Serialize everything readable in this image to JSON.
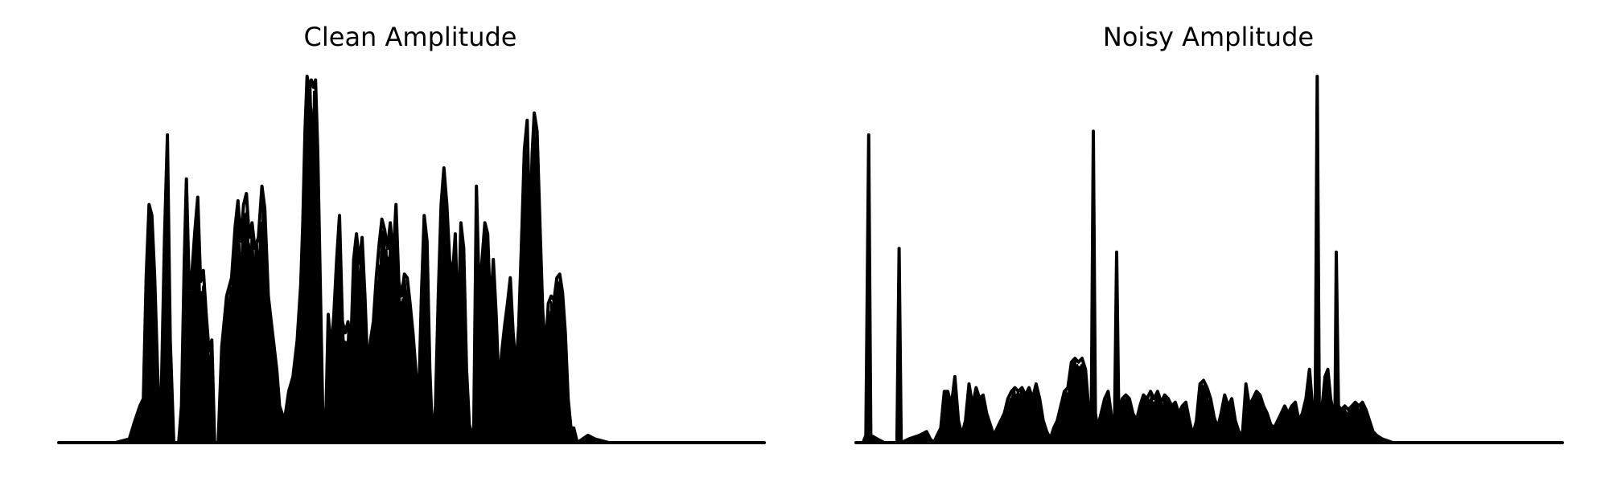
{
  "colors": {
    "background": "#ffffff",
    "waveform": "#000000"
  },
  "chart_data": [
    {
      "type": "area",
      "title": "Clean Amplitude",
      "xlabel": "",
      "ylabel": "",
      "axes_visible": false,
      "grid": false,
      "xlim": [
        0,
        1
      ],
      "ylim": [
        0,
        1
      ],
      "peaks": [
        [
          0.0,
          0.0
        ],
        [
          0.08,
          0.0
        ],
        [
          0.1,
          0.01
        ],
        [
          0.108,
          0.06
        ],
        [
          0.115,
          0.1
        ],
        [
          0.12,
          0.12
        ],
        [
          0.124,
          0.45
        ],
        [
          0.128,
          0.65
        ],
        [
          0.132,
          0.62
        ],
        [
          0.136,
          0.45
        ],
        [
          0.14,
          0.2
        ],
        [
          0.144,
          0.0
        ],
        [
          0.15,
          0.56
        ],
        [
          0.154,
          0.84
        ],
        [
          0.158,
          0.28
        ],
        [
          0.163,
          0.0
        ],
        [
          0.17,
          0.0
        ],
        [
          0.174,
          0.1
        ],
        [
          0.178,
          0.5
        ],
        [
          0.181,
          0.72
        ],
        [
          0.185,
          0.42
        ],
        [
          0.189,
          0.47
        ],
        [
          0.193,
          0.58
        ],
        [
          0.197,
          0.67
        ],
        [
          0.201,
          0.44
        ],
        [
          0.205,
          0.47
        ],
        [
          0.209,
          0.35
        ],
        [
          0.213,
          0.25
        ],
        [
          0.217,
          0.28
        ],
        [
          0.221,
          0.0
        ],
        [
          0.226,
          0.0
        ],
        [
          0.231,
          0.26
        ],
        [
          0.238,
          0.4
        ],
        [
          0.245,
          0.45
        ],
        [
          0.25,
          0.59
        ],
        [
          0.254,
          0.66
        ],
        [
          0.258,
          0.55
        ],
        [
          0.262,
          0.65
        ],
        [
          0.266,
          0.68
        ],
        [
          0.27,
          0.56
        ],
        [
          0.274,
          0.6
        ],
        [
          0.278,
          0.53
        ],
        [
          0.283,
          0.56
        ],
        [
          0.288,
          0.7
        ],
        [
          0.292,
          0.64
        ],
        [
          0.297,
          0.4
        ],
        [
          0.303,
          0.3
        ],
        [
          0.309,
          0.2
        ],
        [
          0.313,
          0.1
        ],
        [
          0.32,
          0.06
        ],
        [
          0.326,
          0.14
        ],
        [
          0.332,
          0.18
        ],
        [
          0.338,
          0.28
        ],
        [
          0.343,
          0.43
        ],
        [
          0.346,
          0.6
        ],
        [
          0.349,
          0.85
        ],
        [
          0.352,
          1.0
        ],
        [
          0.355,
          0.97
        ],
        [
          0.358,
          0.99
        ],
        [
          0.361,
          0.97
        ],
        [
          0.364,
          0.99
        ],
        [
          0.367,
          0.8
        ],
        [
          0.371,
          0.4
        ],
        [
          0.375,
          0.0
        ],
        [
          0.379,
          0.1
        ],
        [
          0.382,
          0.35
        ],
        [
          0.386,
          0.25
        ],
        [
          0.39,
          0.35
        ],
        [
          0.394,
          0.5
        ],
        [
          0.398,
          0.62
        ],
        [
          0.402,
          0.33
        ],
        [
          0.406,
          0.3
        ],
        [
          0.41,
          0.33
        ],
        [
          0.414,
          0.26
        ],
        [
          0.418,
          0.5
        ],
        [
          0.422,
          0.57
        ],
        [
          0.426,
          0.49
        ],
        [
          0.43,
          0.56
        ],
        [
          0.434,
          0.4
        ],
        [
          0.438,
          0.2
        ],
        [
          0.442,
          0.28
        ],
        [
          0.446,
          0.33
        ],
        [
          0.45,
          0.45
        ],
        [
          0.454,
          0.54
        ],
        [
          0.458,
          0.61
        ],
        [
          0.462,
          0.58
        ],
        [
          0.466,
          0.53
        ],
        [
          0.47,
          0.6
        ],
        [
          0.474,
          0.5
        ],
        [
          0.478,
          0.65
        ],
        [
          0.482,
          0.44
        ],
        [
          0.486,
          0.4
        ],
        [
          0.49,
          0.46
        ],
        [
          0.494,
          0.45
        ],
        [
          0.498,
          0.38
        ],
        [
          0.502,
          0.3
        ],
        [
          0.506,
          0.2
        ],
        [
          0.51,
          0.1
        ],
        [
          0.514,
          0.4
        ],
        [
          0.518,
          0.62
        ],
        [
          0.522,
          0.55
        ],
        [
          0.526,
          0.2
        ],
        [
          0.53,
          0.0
        ],
        [
          0.534,
          0.1
        ],
        [
          0.538,
          0.4
        ],
        [
          0.542,
          0.65
        ],
        [
          0.546,
          0.75
        ],
        [
          0.55,
          0.65
        ],
        [
          0.554,
          0.5
        ],
        [
          0.558,
          0.45
        ],
        [
          0.562,
          0.57
        ],
        [
          0.566,
          0.3
        ],
        [
          0.57,
          0.6
        ],
        [
          0.574,
          0.53
        ],
        [
          0.578,
          0.2
        ],
        [
          0.582,
          0.05
        ],
        [
          0.588,
          0.0
        ],
        [
          0.592,
          0.7
        ],
        [
          0.596,
          0.4
        ],
        [
          0.6,
          0.5
        ],
        [
          0.604,
          0.6
        ],
        [
          0.608,
          0.57
        ],
        [
          0.612,
          0.35
        ],
        [
          0.616,
          0.5
        ],
        [
          0.62,
          0.35
        ],
        [
          0.624,
          0.15
        ],
        [
          0.628,
          0.25
        ],
        [
          0.632,
          0.32
        ],
        [
          0.636,
          0.38
        ],
        [
          0.64,
          0.45
        ],
        [
          0.644,
          0.3
        ],
        [
          0.648,
          0.2
        ],
        [
          0.652,
          0.32
        ],
        [
          0.656,
          0.55
        ],
        [
          0.66,
          0.8
        ],
        [
          0.664,
          0.88
        ],
        [
          0.668,
          0.55
        ],
        [
          0.671,
          0.79
        ],
        [
          0.674,
          0.9
        ],
        [
          0.678,
          0.85
        ],
        [
          0.682,
          0.6
        ],
        [
          0.686,
          0.36
        ],
        [
          0.69,
          0.25
        ],
        [
          0.694,
          0.38
        ],
        [
          0.698,
          0.4
        ],
        [
          0.702,
          0.39
        ],
        [
          0.706,
          0.45
        ],
        [
          0.71,
          0.46
        ],
        [
          0.714,
          0.41
        ],
        [
          0.718,
          0.3
        ],
        [
          0.722,
          0.12
        ],
        [
          0.726,
          0.04
        ],
        [
          0.73,
          0.04
        ],
        [
          0.735,
          0.0
        ],
        [
          0.75,
          0.02
        ],
        [
          0.76,
          0.01
        ],
        [
          0.78,
          0.0
        ],
        [
          1.0,
          0.0
        ]
      ]
    },
    {
      "type": "area",
      "title": "Noisy Amplitude",
      "xlabel": "",
      "ylabel": "",
      "axes_visible": false,
      "grid": false,
      "xlim": [
        0,
        1
      ],
      "ylim": [
        0,
        1
      ],
      "peaks": [
        [
          0.0,
          0.0
        ],
        [
          0.01,
          0.0
        ],
        [
          0.014,
          0.02
        ],
        [
          0.018,
          0.84
        ],
        [
          0.021,
          0.02
        ],
        [
          0.03,
          0.01
        ],
        [
          0.04,
          0.0
        ],
        [
          0.058,
          0.0
        ],
        [
          0.061,
          0.53
        ],
        [
          0.064,
          0.0
        ],
        [
          0.075,
          0.01
        ],
        [
          0.09,
          0.02
        ],
        [
          0.1,
          0.03
        ],
        [
          0.105,
          0.01
        ],
        [
          0.11,
          0.0
        ],
        [
          0.115,
          0.02
        ],
        [
          0.12,
          0.04
        ],
        [
          0.125,
          0.14
        ],
        [
          0.13,
          0.14
        ],
        [
          0.135,
          0.1
        ],
        [
          0.14,
          0.18
        ],
        [
          0.145,
          0.06
        ],
        [
          0.15,
          0.02
        ],
        [
          0.155,
          0.06
        ],
        [
          0.16,
          0.16
        ],
        [
          0.165,
          0.1
        ],
        [
          0.17,
          0.15
        ],
        [
          0.175,
          0.12
        ],
        [
          0.18,
          0.13
        ],
        [
          0.185,
          0.08
        ],
        [
          0.19,
          0.05
        ],
        [
          0.195,
          0.02
        ],
        [
          0.2,
          0.04
        ],
        [
          0.205,
          0.06
        ],
        [
          0.21,
          0.08
        ],
        [
          0.215,
          0.12
        ],
        [
          0.22,
          0.14
        ],
        [
          0.225,
          0.15
        ],
        [
          0.23,
          0.14
        ],
        [
          0.235,
          0.15
        ],
        [
          0.24,
          0.13
        ],
        [
          0.245,
          0.15
        ],
        [
          0.25,
          0.12
        ],
        [
          0.255,
          0.16
        ],
        [
          0.26,
          0.12
        ],
        [
          0.265,
          0.06
        ],
        [
          0.27,
          0.03
        ],
        [
          0.275,
          0.01
        ],
        [
          0.28,
          0.04
        ],
        [
          0.285,
          0.06
        ],
        [
          0.29,
          0.1
        ],
        [
          0.295,
          0.14
        ],
        [
          0.3,
          0.15
        ],
        [
          0.305,
          0.22
        ],
        [
          0.31,
          0.23
        ],
        [
          0.315,
          0.22
        ],
        [
          0.32,
          0.23
        ],
        [
          0.325,
          0.2
        ],
        [
          0.33,
          0.08
        ],
        [
          0.333,
          0.04
        ],
        [
          0.336,
          0.85
        ],
        [
          0.339,
          0.08
        ],
        [
          0.342,
          0.04
        ],
        [
          0.347,
          0.08
        ],
        [
          0.352,
          0.12
        ],
        [
          0.357,
          0.14
        ],
        [
          0.362,
          0.07
        ],
        [
          0.366,
          0.04
        ],
        [
          0.369,
          0.52
        ],
        [
          0.372,
          0.08
        ],
        [
          0.377,
          0.12
        ],
        [
          0.382,
          0.13
        ],
        [
          0.387,
          0.12
        ],
        [
          0.392,
          0.08
        ],
        [
          0.397,
          0.06
        ],
        [
          0.402,
          0.1
        ],
        [
          0.407,
          0.13
        ],
        [
          0.412,
          0.12
        ],
        [
          0.417,
          0.14
        ],
        [
          0.422,
          0.12
        ],
        [
          0.427,
          0.14
        ],
        [
          0.432,
          0.11
        ],
        [
          0.437,
          0.13
        ],
        [
          0.442,
          0.12
        ],
        [
          0.447,
          0.1
        ],
        [
          0.452,
          0.11
        ],
        [
          0.457,
          0.08
        ],
        [
          0.462,
          0.1
        ],
        [
          0.467,
          0.11
        ],
        [
          0.472,
          0.06
        ],
        [
          0.477,
          0.02
        ],
        [
          0.482,
          0.06
        ],
        [
          0.487,
          0.16
        ],
        [
          0.492,
          0.17
        ],
        [
          0.497,
          0.15
        ],
        [
          0.502,
          0.12
        ],
        [
          0.507,
          0.07
        ],
        [
          0.512,
          0.04
        ],
        [
          0.517,
          0.08
        ],
        [
          0.522,
          0.13
        ],
        [
          0.527,
          0.1
        ],
        [
          0.532,
          0.12
        ],
        [
          0.537,
          0.06
        ],
        [
          0.542,
          0.03
        ],
        [
          0.547,
          0.02
        ],
        [
          0.552,
          0.16
        ],
        [
          0.557,
          0.1
        ],
        [
          0.562,
          0.12
        ],
        [
          0.567,
          0.14
        ],
        [
          0.572,
          0.13
        ],
        [
          0.577,
          0.1
        ],
        [
          0.582,
          0.08
        ],
        [
          0.587,
          0.05
        ],
        [
          0.592,
          0.04
        ],
        [
          0.597,
          0.06
        ],
        [
          0.602,
          0.08
        ],
        [
          0.607,
          0.1
        ],
        [
          0.612,
          0.08
        ],
        [
          0.617,
          0.1
        ],
        [
          0.622,
          0.11
        ],
        [
          0.627,
          0.06
        ],
        [
          0.632,
          0.08
        ],
        [
          0.637,
          0.12
        ],
        [
          0.642,
          0.2
        ],
        [
          0.647,
          0.08
        ],
        [
          0.65,
          0.04
        ],
        [
          0.653,
          1.0
        ],
        [
          0.656,
          0.05
        ],
        [
          0.66,
          0.1
        ],
        [
          0.664,
          0.18
        ],
        [
          0.668,
          0.2
        ],
        [
          0.672,
          0.12
        ],
        [
          0.676,
          0.08
        ],
        [
          0.678,
          0.04
        ],
        [
          0.68,
          0.52
        ],
        [
          0.683,
          0.1
        ],
        [
          0.687,
          0.09
        ],
        [
          0.692,
          0.1
        ],
        [
          0.697,
          0.09
        ],
        [
          0.702,
          0.1
        ],
        [
          0.707,
          0.11
        ],
        [
          0.712,
          0.1
        ],
        [
          0.717,
          0.11
        ],
        [
          0.722,
          0.09
        ],
        [
          0.727,
          0.06
        ],
        [
          0.732,
          0.03
        ],
        [
          0.737,
          0.02
        ],
        [
          0.745,
          0.01
        ],
        [
          0.76,
          0.0
        ],
        [
          1.0,
          0.0
        ]
      ]
    }
  ]
}
